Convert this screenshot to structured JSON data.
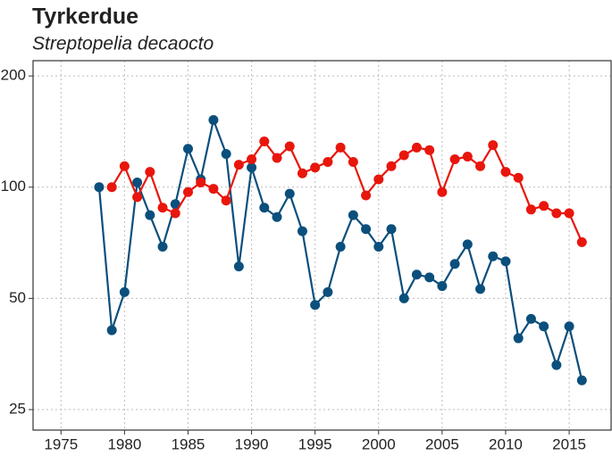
{
  "chart_data": {
    "type": "line",
    "title": "Tyrkerdue",
    "subtitle": "Streptopelia decaocto",
    "log_y": true,
    "grid": true,
    "xlim": [
      1972.8,
      2018.3
    ],
    "xticks": [
      1975,
      1980,
      1985,
      1990,
      1995,
      2000,
      2005,
      2010,
      2015
    ],
    "ylim": [
      22,
      220
    ],
    "yticks": [
      25,
      50,
      100,
      200
    ],
    "series": [
      {
        "color": "#0b4f7c",
        "x": [
          1978,
          1979,
          1980,
          1981,
          1982,
          1983,
          1984,
          1985,
          1986,
          1987,
          1988,
          1989,
          1990,
          1991,
          1992,
          1993,
          1994,
          1995,
          1996,
          1997,
          1998,
          1999,
          2000,
          2001,
          2002,
          2003,
          2004,
          2005,
          2006,
          2007,
          2008,
          2009,
          2010,
          2011,
          2012,
          2013,
          2014,
          2015,
          2016
        ],
        "values": [
          100,
          41,
          52,
          103,
          84,
          69,
          90,
          127,
          105,
          152,
          123,
          61,
          113,
          88,
          83,
          96,
          76,
          48,
          52,
          69,
          84,
          77,
          69,
          77,
          50,
          58,
          57,
          54,
          62,
          70,
          53,
          65,
          63,
          39,
          44,
          42,
          33,
          42,
          30
        ]
      },
      {
        "color": "#e8160c",
        "x": [
          1979,
          1980,
          1981,
          1982,
          1983,
          1984,
          1985,
          1986,
          1987,
          1988,
          1989,
          1990,
          1991,
          1992,
          1993,
          1994,
          1995,
          1996,
          1997,
          1998,
          1999,
          2000,
          2001,
          2002,
          2003,
          2004,
          2005,
          2006,
          2007,
          2008,
          2009,
          2010,
          2011,
          2012,
          2013,
          2014,
          2015,
          2016
        ],
        "values": [
          100,
          114,
          94,
          110,
          88,
          85,
          97,
          103,
          99,
          92,
          115,
          119,
          133,
          120,
          129,
          109,
          113,
          117,
          128,
          117,
          95,
          105,
          114,
          122,
          128,
          126,
          97,
          119,
          121,
          114,
          130,
          110,
          106,
          87,
          89,
          85,
          85,
          71
        ]
      }
    ]
  }
}
